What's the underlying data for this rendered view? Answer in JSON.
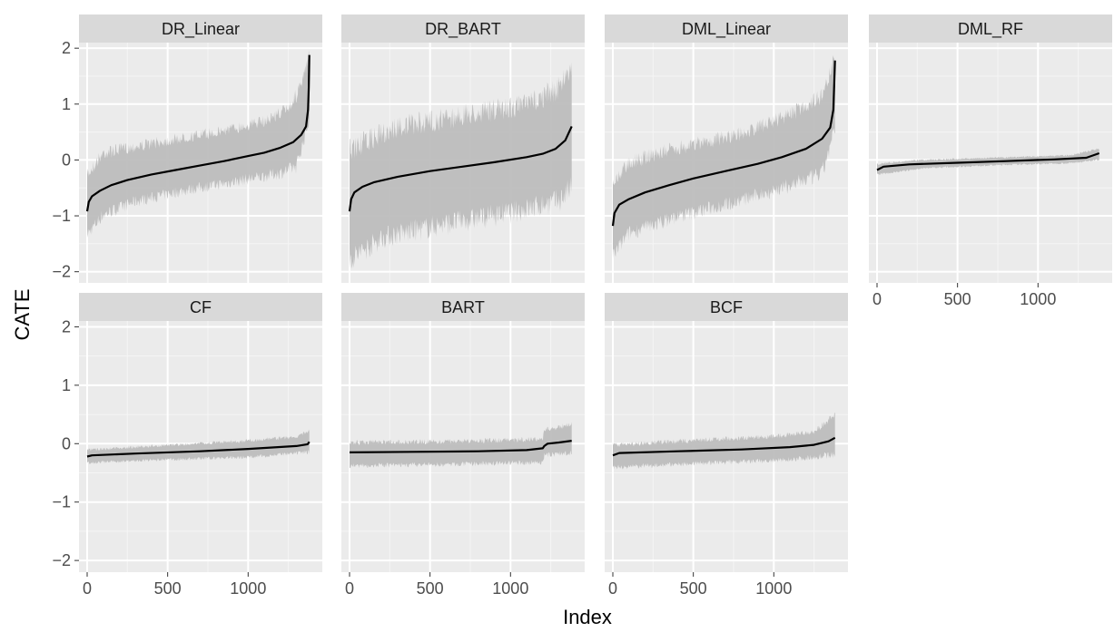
{
  "chart_data": {
    "type": "line",
    "layout": "facet_wrap",
    "xlabel": "Index",
    "ylabel": "CATE",
    "xlim": [
      -50,
      1420
    ],
    "ylim": [
      -2.2,
      2.1
    ],
    "x_ticks": [
      0,
      500,
      1000
    ],
    "y_ticks": [
      -2,
      -1,
      0,
      1,
      2
    ],
    "x_tick_labels": [
      "0",
      "500",
      "1000"
    ],
    "y_tick_labels": [
      "−2",
      "−1",
      "0",
      "1",
      "2"
    ],
    "n_points": 1380,
    "grid": true,
    "band_color": "#bdbdbd",
    "line_color": "#000000",
    "panel_bg": "#ebebeb",
    "strip_bg": "#d9d9d9",
    "panels": [
      {
        "label": "DR_Linear",
        "estimate": [
          [
            0,
            -0.92
          ],
          [
            10,
            -0.75
          ],
          [
            30,
            -0.65
          ],
          [
            80,
            -0.55
          ],
          [
            150,
            -0.45
          ],
          [
            250,
            -0.36
          ],
          [
            400,
            -0.26
          ],
          [
            550,
            -0.18
          ],
          [
            700,
            -0.1
          ],
          [
            850,
            -0.02
          ],
          [
            1000,
            0.07
          ],
          [
            1100,
            0.13
          ],
          [
            1200,
            0.22
          ],
          [
            1280,
            0.32
          ],
          [
            1330,
            0.45
          ],
          [
            1360,
            0.6
          ],
          [
            1372,
            0.9
          ],
          [
            1377,
            1.3
          ],
          [
            1380,
            1.88
          ]
        ],
        "lower": [
          [
            0,
            -1.45
          ],
          [
            100,
            -1.1
          ],
          [
            300,
            -0.85
          ],
          [
            600,
            -0.65
          ],
          [
            900,
            -0.5
          ],
          [
            1200,
            -0.35
          ],
          [
            1300,
            -0.25
          ],
          [
            1380,
            0.6
          ]
        ],
        "upper": [
          [
            0,
            -0.15
          ],
          [
            100,
            0.25
          ],
          [
            400,
            0.4
          ],
          [
            800,
            0.6
          ],
          [
            1100,
            0.8
          ],
          [
            1250,
            1.05
          ],
          [
            1330,
            1.45
          ],
          [
            1380,
            2.0
          ]
        ]
      },
      {
        "label": "DR_BART",
        "estimate": [
          [
            0,
            -0.92
          ],
          [
            10,
            -0.7
          ],
          [
            30,
            -0.58
          ],
          [
            80,
            -0.48
          ],
          [
            150,
            -0.4
          ],
          [
            300,
            -0.3
          ],
          [
            500,
            -0.2
          ],
          [
            700,
            -0.12
          ],
          [
            900,
            -0.04
          ],
          [
            1100,
            0.05
          ],
          [
            1200,
            0.11
          ],
          [
            1280,
            0.2
          ],
          [
            1340,
            0.35
          ],
          [
            1380,
            0.6
          ]
        ],
        "lower": [
          [
            0,
            -2.0
          ],
          [
            200,
            -1.6
          ],
          [
            600,
            -1.35
          ],
          [
            1000,
            -1.15
          ],
          [
            1300,
            -0.95
          ],
          [
            1380,
            -0.75
          ]
        ],
        "upper": [
          [
            0,
            0.4
          ],
          [
            300,
            0.8
          ],
          [
            700,
            1.0
          ],
          [
            1100,
            1.2
          ],
          [
            1300,
            1.5
          ],
          [
            1380,
            1.95
          ]
        ]
      },
      {
        "label": "DML_Linear",
        "estimate": [
          [
            0,
            -1.18
          ],
          [
            10,
            -0.95
          ],
          [
            40,
            -0.8
          ],
          [
            100,
            -0.7
          ],
          [
            200,
            -0.58
          ],
          [
            350,
            -0.45
          ],
          [
            500,
            -0.33
          ],
          [
            700,
            -0.2
          ],
          [
            900,
            -0.07
          ],
          [
            1050,
            0.05
          ],
          [
            1200,
            0.2
          ],
          [
            1300,
            0.38
          ],
          [
            1350,
            0.58
          ],
          [
            1370,
            0.9
          ],
          [
            1380,
            1.78
          ]
        ],
        "lower": [
          [
            0,
            -1.85
          ],
          [
            100,
            -1.45
          ],
          [
            400,
            -1.15
          ],
          [
            800,
            -0.85
          ],
          [
            1100,
            -0.6
          ],
          [
            1300,
            -0.4
          ],
          [
            1380,
            0.4
          ]
        ],
        "upper": [
          [
            0,
            -0.3
          ],
          [
            100,
            0.1
          ],
          [
            400,
            0.35
          ],
          [
            800,
            0.6
          ],
          [
            1100,
            0.95
          ],
          [
            1300,
            1.3
          ],
          [
            1380,
            2.0
          ]
        ]
      },
      {
        "label": "DML_RF",
        "estimate": [
          [
            0,
            -0.18
          ],
          [
            40,
            -0.12
          ],
          [
            200,
            -0.08
          ],
          [
            500,
            -0.05
          ],
          [
            800,
            -0.02
          ],
          [
            1100,
            0.01
          ],
          [
            1300,
            0.04
          ],
          [
            1380,
            0.12
          ]
        ],
        "lower": [
          [
            0,
            -0.28
          ],
          [
            300,
            -0.16
          ],
          [
            800,
            -0.1
          ],
          [
            1200,
            -0.07
          ],
          [
            1380,
            -0.02
          ]
        ],
        "upper": [
          [
            0,
            -0.05
          ],
          [
            300,
            0.02
          ],
          [
            800,
            0.06
          ],
          [
            1200,
            0.1
          ],
          [
            1380,
            0.22
          ]
        ]
      },
      {
        "label": "CF",
        "estimate": [
          [
            0,
            -0.22
          ],
          [
            30,
            -0.2
          ],
          [
            300,
            -0.17
          ],
          [
            700,
            -0.13
          ],
          [
            1000,
            -0.09
          ],
          [
            1300,
            -0.04
          ],
          [
            1370,
            -0.01
          ],
          [
            1380,
            0.03
          ]
        ],
        "lower": [
          [
            0,
            -0.35
          ],
          [
            500,
            -0.3
          ],
          [
            1000,
            -0.26
          ],
          [
            1380,
            -0.18
          ]
        ],
        "upper": [
          [
            0,
            -0.08
          ],
          [
            500,
            0.0
          ],
          [
            1000,
            0.08
          ],
          [
            1300,
            0.15
          ],
          [
            1380,
            0.25
          ]
        ]
      },
      {
        "label": "BART",
        "estimate": [
          [
            0,
            -0.15
          ],
          [
            400,
            -0.14
          ],
          [
            800,
            -0.13
          ],
          [
            1100,
            -0.11
          ],
          [
            1200,
            -0.08
          ],
          [
            1210,
            -0.04
          ],
          [
            1230,
            0.0
          ],
          [
            1300,
            0.02
          ],
          [
            1380,
            0.05
          ]
        ],
        "lower": [
          [
            0,
            -0.42
          ],
          [
            600,
            -0.4
          ],
          [
            1200,
            -0.36
          ],
          [
            1210,
            -0.25
          ],
          [
            1380,
            -0.2
          ]
        ],
        "upper": [
          [
            0,
            0.06
          ],
          [
            600,
            0.08
          ],
          [
            1200,
            0.12
          ],
          [
            1210,
            0.28
          ],
          [
            1380,
            0.38
          ]
        ]
      },
      {
        "label": "BCF",
        "estimate": [
          [
            0,
            -0.2
          ],
          [
            40,
            -0.16
          ],
          [
            400,
            -0.13
          ],
          [
            800,
            -0.1
          ],
          [
            1100,
            -0.06
          ],
          [
            1250,
            -0.02
          ],
          [
            1340,
            0.04
          ],
          [
            1380,
            0.1
          ]
        ],
        "lower": [
          [
            0,
            -0.45
          ],
          [
            500,
            -0.38
          ],
          [
            1000,
            -0.34
          ],
          [
            1380,
            -0.25
          ]
        ],
        "upper": [
          [
            0,
            0.02
          ],
          [
            500,
            0.1
          ],
          [
            1000,
            0.17
          ],
          [
            1250,
            0.25
          ],
          [
            1380,
            0.55
          ]
        ]
      }
    ]
  }
}
